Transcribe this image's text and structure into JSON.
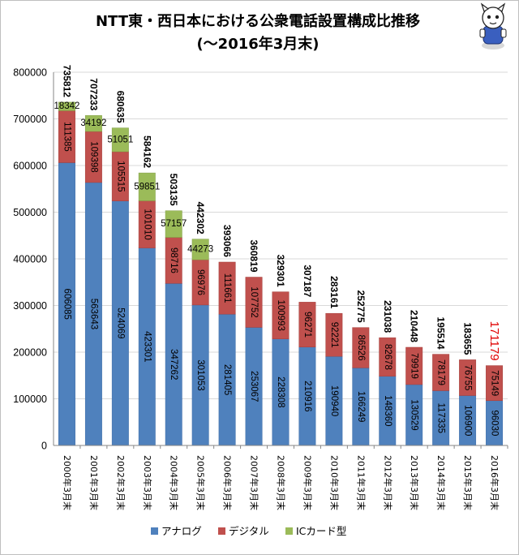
{
  "chart_data": {
    "type": "bar",
    "stacked": true,
    "title": [
      "NTT東・西日本における公衆電話設置構成比推移",
      "(〜2016年3月末)"
    ],
    "categories": [
      "2000年3月末",
      "2001年3月末",
      "2002年3月末",
      "2003年3月末",
      "2004年3月末",
      "2005年3月末",
      "2006年3月末",
      "2007年3月末",
      "2008年3月末",
      "2009年3月末",
      "2010年3月末",
      "2011年3月末",
      "2012年3月末",
      "2013年3月末",
      "2014年3月末",
      "2015年3月末",
      "2016年3月末"
    ],
    "series": [
      {
        "name": "アナログ",
        "color": "#4f81bd",
        "values": [
          606085,
          563643,
          524069,
          423301,
          347262,
          301053,
          281405,
          253067,
          228308,
          210916,
          190940,
          166249,
          148360,
          130529,
          117335,
          106900,
          96030
        ],
        "labels": [
          "606085",
          "563643",
          "524069",
          "423301",
          "347262",
          "301053",
          "281405",
          "253067",
          "228308",
          "210916",
          "190940",
          "166249",
          "148360",
          "130529",
          "117335",
          "106900",
          "96030"
        ]
      },
      {
        "name": "デジタル",
        "color": "#c0504d",
        "values": [
          111385,
          109398,
          105515,
          101010,
          98716,
          96976,
          111661,
          107752,
          100993,
          96271,
          92221,
          86526,
          82678,
          79919,
          78179,
          76755,
          75149
        ],
        "labels": [
          "111385",
          "109398",
          "105515",
          "101010",
          "98716",
          "96976",
          "111661",
          "107752",
          "100993",
          "96271",
          "92221",
          "86526",
          "82678",
          "79919",
          "78179",
          "76755",
          "75149"
        ]
      },
      {
        "name": "ICカード型",
        "color": "#9bbb59",
        "values": [
          18342,
          34192,
          51051,
          59851,
          57157,
          44273,
          0,
          0,
          0,
          0,
          0,
          0,
          0,
          0,
          0,
          0,
          0
        ],
        "labels": [
          "18342",
          "34192",
          "51051",
          "59851",
          "57157",
          "44273",
          "",
          "",
          "",
          "",
          "",
          "",
          "",
          "",
          "",
          "",
          ""
        ]
      }
    ],
    "totals": [
      "735812",
      "707233",
      "680635",
      "584162",
      "503135",
      "442302",
      "393066",
      "360819",
      "329301",
      "307187",
      "283161",
      "252775",
      "231038",
      "210448",
      "195514",
      "183655",
      "171179"
    ],
    "highlight_total_index": 16,
    "highlight_color": "#e00000",
    "yticks": [
      "0",
      "100000",
      "200000",
      "300000",
      "400000",
      "500000",
      "600000",
      "700000",
      "800000"
    ],
    "ylim": [
      0,
      800000
    ],
    "legend_position": "bottom",
    "grid": true
  }
}
